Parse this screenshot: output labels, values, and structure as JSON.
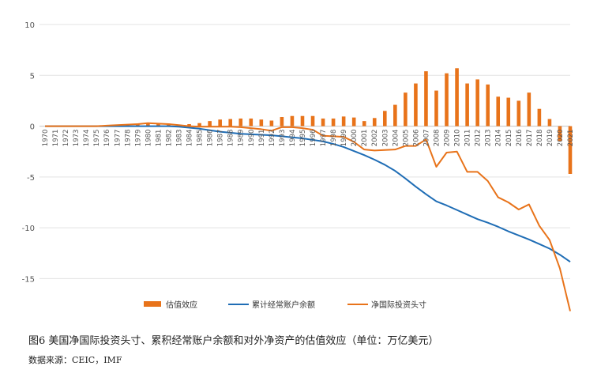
{
  "caption": "图6 美国净国际投资头寸、累积经常账户余额和对外净资产的估值效应（单位：万亿美元）",
  "source": "数据来源：CEIC，IMF",
  "chart_data": {
    "type": "bar+line",
    "categories": [
      "1970",
      "1971",
      "1972",
      "1973",
      "1974",
      "1975",
      "1976",
      "1977",
      "1978",
      "1979",
      "1980",
      "1981",
      "1982",
      "1983",
      "1984",
      "1985",
      "1986",
      "1987",
      "1988",
      "1989",
      "1990",
      "1991",
      "1992",
      "1993",
      "1994",
      "1995",
      "1996",
      "1997",
      "1998",
      "1999",
      "2000",
      "2001",
      "2002",
      "2003",
      "2004",
      "2005",
      "2006",
      "2007",
      "2008",
      "2009",
      "2010",
      "2011",
      "2012",
      "2013",
      "2014",
      "2015",
      "2016",
      "2017",
      "2018",
      "2019",
      "2020",
      "2021"
    ],
    "ylim": [
      -18,
      10
    ],
    "yticks": [
      10,
      5,
      0,
      -5,
      -10,
      -15
    ],
    "grid": true,
    "legend_position": "bottom",
    "series": [
      {
        "name": "估值效应",
        "kind": "bar",
        "color": "#E8731A",
        "values": [
          0,
          0,
          0,
          0,
          0,
          0,
          0.05,
          0.1,
          0.2,
          0.25,
          0.3,
          0.2,
          0.25,
          0.15,
          0.2,
          0.3,
          0.5,
          0.65,
          0.7,
          0.75,
          0.75,
          0.65,
          0.55,
          0.9,
          1.0,
          1.0,
          1.0,
          0.75,
          0.75,
          0.95,
          0.85,
          0.5,
          0.8,
          1.5,
          2.1,
          3.3,
          4.2,
          5.4,
          3.5,
          5.2,
          5.7,
          4.2,
          4.6,
          4.1,
          2.9,
          2.8,
          2.5,
          3.3,
          1.7,
          0.7,
          -1.5,
          -4.7
        ]
      },
      {
        "name": "累计经常账户余额",
        "kind": "line",
        "color": "#1F6DB5",
        "values": [
          0,
          0,
          0,
          0,
          0,
          0,
          0,
          0,
          0,
          0,
          0,
          0,
          0,
          -0.05,
          -0.15,
          -0.25,
          -0.4,
          -0.55,
          -0.65,
          -0.75,
          -0.8,
          -0.85,
          -0.9,
          -1.0,
          -1.1,
          -1.2,
          -1.35,
          -1.5,
          -1.75,
          -2.05,
          -2.45,
          -2.85,
          -3.3,
          -3.8,
          -4.4,
          -5.15,
          -5.95,
          -6.7,
          -7.4,
          -7.8,
          -8.25,
          -8.7,
          -9.15,
          -9.5,
          -9.9,
          -10.35,
          -10.75,
          -11.15,
          -11.6,
          -12.05,
          -12.65,
          -13.35
        ]
      },
      {
        "name": "净国际投资头寸",
        "kind": "line",
        "color": "#E8731A",
        "values": [
          0,
          0,
          0,
          0,
          0,
          0,
          0.05,
          0.1,
          0.15,
          0.2,
          0.3,
          0.25,
          0.2,
          0.1,
          0,
          -0.05,
          -0.05,
          -0.05,
          -0.05,
          -0.1,
          -0.2,
          -0.3,
          -0.45,
          -0.1,
          -0.1,
          -0.2,
          -0.35,
          -0.95,
          -1.0,
          -1.05,
          -1.55,
          -2.3,
          -2.4,
          -2.35,
          -2.3,
          -1.95,
          -1.95,
          -1.3,
          -4.0,
          -2.6,
          -2.5,
          -4.5,
          -4.5,
          -5.4,
          -7.0,
          -7.5,
          -8.2,
          -7.7,
          -9.8,
          -11.2,
          -14.0,
          -18.2
        ]
      }
    ]
  }
}
